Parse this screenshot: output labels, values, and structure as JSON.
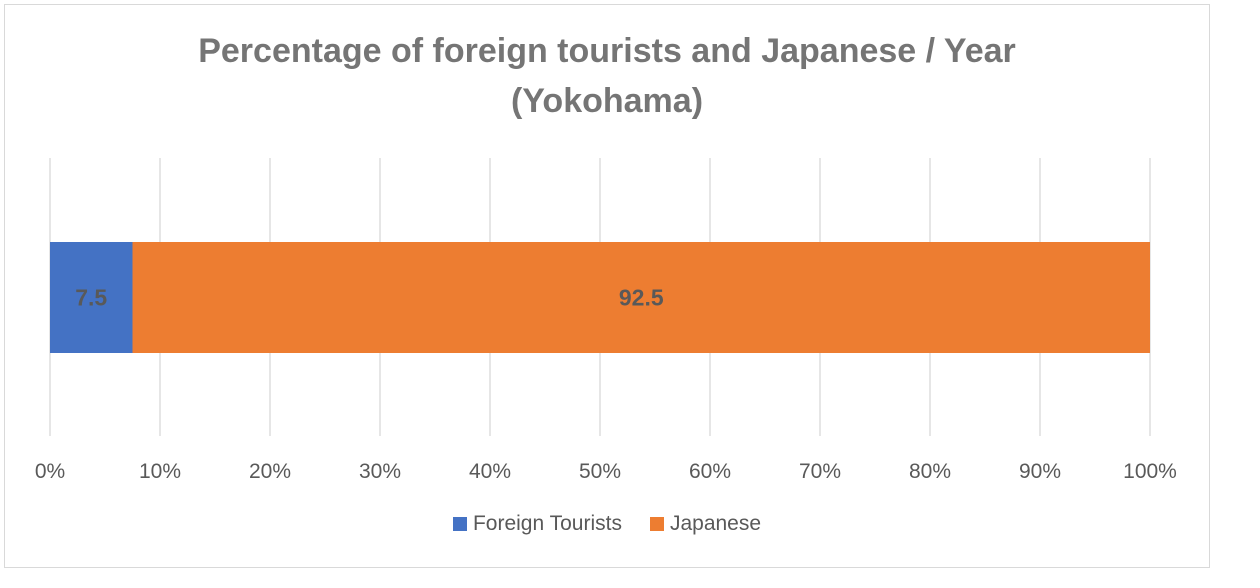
{
  "chart_data": {
    "type": "bar",
    "orientation": "horizontal",
    "stacked": "percent",
    "title": "Percentage of foreign tourists and Japanese / Year (Yokohama)",
    "title_lines": [
      "Percentage of foreign tourists and Japanese / Year",
      "(Yokohama)"
    ],
    "categories": [
      ""
    ],
    "series": [
      {
        "name": "Foreign Tourists",
        "values": [
          7.5
        ],
        "color": "#4472c4",
        "data_labels": [
          "7.5"
        ]
      },
      {
        "name": "Japanese",
        "values": [
          92.5
        ],
        "color": "#ed7d31",
        "data_labels": [
          "92.5"
        ]
      }
    ],
    "xlabel": "",
    "ylabel": "",
    "xlim": [
      0,
      100
    ],
    "x_ticks": [
      0,
      10,
      20,
      30,
      40,
      50,
      60,
      70,
      80,
      90,
      100
    ],
    "x_tick_labels": [
      "0%",
      "10%",
      "20%",
      "30%",
      "40%",
      "50%",
      "60%",
      "70%",
      "80%",
      "90%",
      "100%"
    ],
    "grid": "vertical",
    "legend_position": "bottom"
  }
}
